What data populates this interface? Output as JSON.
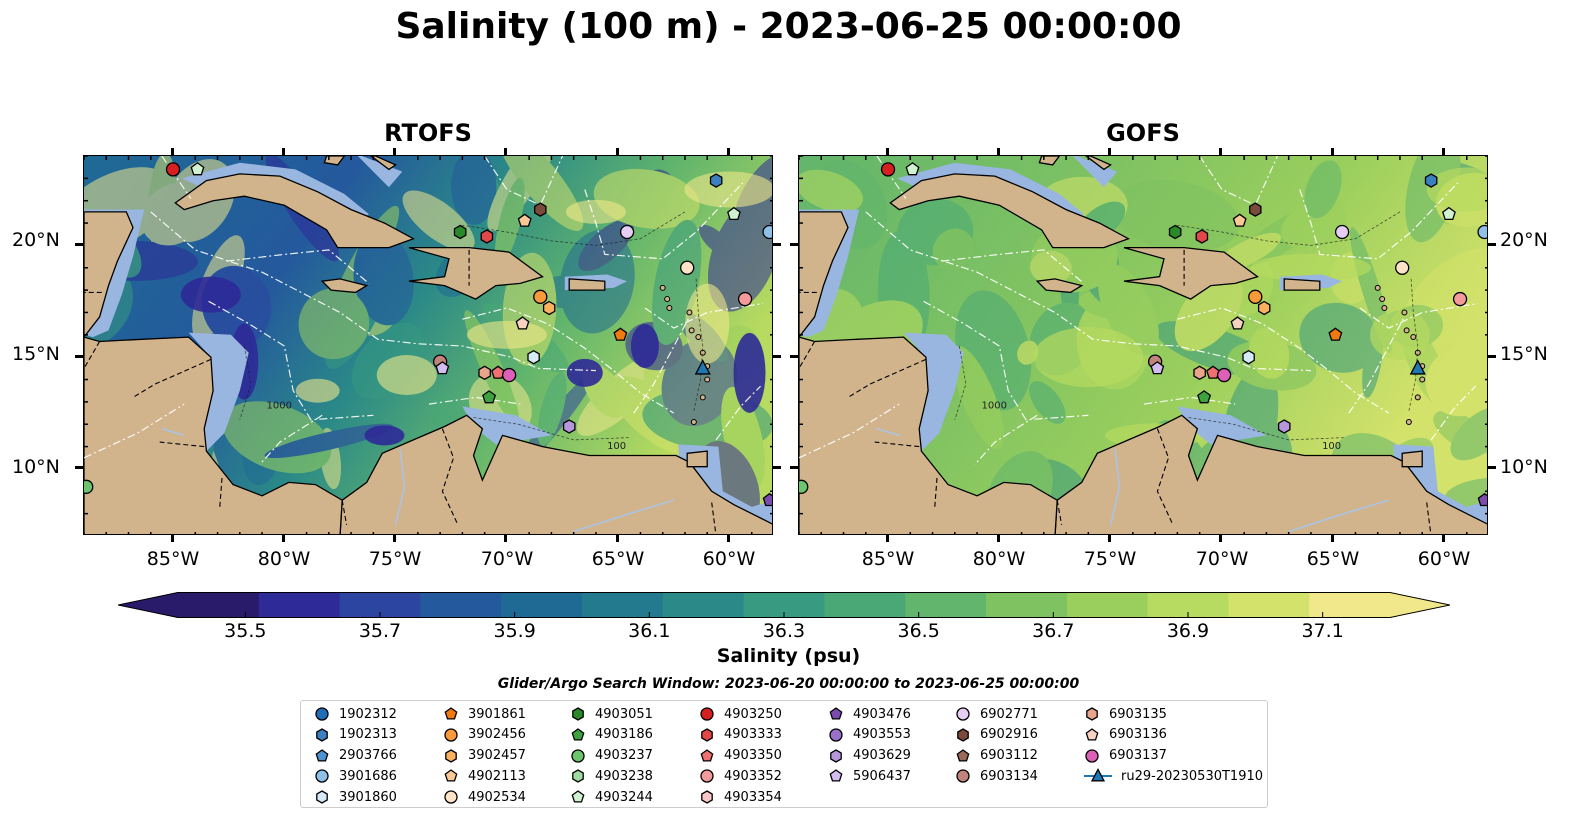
{
  "title": "Salinity (100 m) - 2023-06-25 00:00:00",
  "panels": [
    {
      "title": "RTOFS",
      "scheme": "rtofs"
    },
    {
      "title": "GOFS",
      "scheme": "gofs"
    }
  ],
  "map": {
    "lon_range": [
      -89,
      -58
    ],
    "lat_range": [
      7,
      24
    ],
    "lon_ticks": [
      "85°W",
      "80°W",
      "75°W",
      "70°W",
      "65°W",
      "60°W"
    ],
    "lat_ticks": [
      "20°N",
      "15°N",
      "10°N"
    ],
    "contour_labels": [
      "1000",
      "100"
    ],
    "land_color": "#d2b48c",
    "shelf_color": "#99b6e0"
  },
  "colorbar": {
    "title": "Salinity (psu)",
    "ticks": [
      "35.5",
      "35.7",
      "35.9",
      "36.1",
      "36.3",
      "36.5",
      "36.7",
      "36.9",
      "37.1"
    ],
    "range": [
      35.4,
      37.2
    ],
    "colors": [
      "#2a1a6a",
      "#2e2a97",
      "#2c45a0",
      "#24599d",
      "#1f6a94",
      "#23798d",
      "#2b8a87",
      "#389a80",
      "#4aa877",
      "#62b56c",
      "#7fc262",
      "#9bcf5d",
      "#b7da60",
      "#d3e26b",
      "#f0e88a"
    ]
  },
  "legend": {
    "title": "Glider/Argo Search Window: 2023-06-20 00:00:00 to 2023-06-25 00:00:00",
    "columns": [
      [
        {
          "label": "1902312",
          "marker": "circle",
          "color": "#1f6db5"
        },
        {
          "label": "1902313",
          "marker": "hexagon",
          "color": "#3a7fc0"
        },
        {
          "label": "2903766",
          "marker": "pentagon",
          "color": "#4e93d0"
        },
        {
          "label": "3901686",
          "marker": "circle",
          "color": "#8ec0e8"
        },
        {
          "label": "3901860",
          "marker": "hexagon",
          "color": "#d6eafa"
        }
      ],
      [
        {
          "label": "3901861",
          "marker": "pentagon",
          "color": "#f07a10"
        },
        {
          "label": "3902456",
          "marker": "circle",
          "color": "#f89a3a"
        },
        {
          "label": "3902457",
          "marker": "hexagon",
          "color": "#f9b060"
        },
        {
          "label": "4902113",
          "marker": "pentagon",
          "color": "#fbc995"
        },
        {
          "label": "4902534",
          "marker": "circle",
          "color": "#fde4c8"
        }
      ],
      [
        {
          "label": "4903051",
          "marker": "hexagon",
          "color": "#2a8a2a"
        },
        {
          "label": "4903186",
          "marker": "pentagon",
          "color": "#3ea33e"
        },
        {
          "label": "4903237",
          "marker": "circle",
          "color": "#6cc46c"
        },
        {
          "label": "4903238",
          "marker": "hexagon",
          "color": "#9fdc9f"
        },
        {
          "label": "4903244",
          "marker": "pentagon",
          "color": "#d0f2d0"
        }
      ],
      [
        {
          "label": "4903250",
          "marker": "circle",
          "color": "#d62020"
        },
        {
          "label": "4903333",
          "marker": "hexagon",
          "color": "#e24848"
        },
        {
          "label": "4903350",
          "marker": "pentagon",
          "color": "#ee7070"
        },
        {
          "label": "4903352",
          "marker": "circle",
          "color": "#f59a9a"
        },
        {
          "label": "4903354",
          "marker": "hexagon",
          "color": "#fbc6c6"
        }
      ],
      [
        {
          "label": "4903476",
          "marker": "pentagon",
          "color": "#7b4bb0"
        },
        {
          "label": "4903553",
          "marker": "circle",
          "color": "#9a70c8"
        },
        {
          "label": "4903629",
          "marker": "hexagon",
          "color": "#b796dc"
        },
        {
          "label": "5906437",
          "marker": "pentagon",
          "color": "#d3bcef"
        }
      ],
      [
        {
          "label": "6902771",
          "marker": "circle",
          "color": "#e6cdf3"
        },
        {
          "label": "6902916",
          "marker": "hexagon",
          "color": "#7a4a3a"
        },
        {
          "label": "6903112",
          "marker": "pentagon",
          "color": "#9a6a58"
        },
        {
          "label": "6903134",
          "marker": "circle",
          "color": "#c0847a"
        }
      ],
      [
        {
          "label": "6903135",
          "marker": "hexagon",
          "color": "#e8a58a"
        },
        {
          "label": "6903136",
          "marker": "pentagon",
          "color": "#f6d2c2"
        },
        {
          "label": "6903137",
          "marker": "circle",
          "color": "#dd5fb8"
        },
        {
          "label": "ru29-20230530T1910",
          "marker": "triangle-line",
          "color": "#1f77b4"
        }
      ]
    ]
  },
  "floats": [
    {
      "lon": -85,
      "lat": 23.4,
      "marker": "circle",
      "color": "#d62020"
    },
    {
      "lon": -83.9,
      "lat": 23.4,
      "marker": "pentagon",
      "color": "#d0f2d0"
    },
    {
      "lon": -60.6,
      "lat": 22.9,
      "marker": "hexagon",
      "color": "#3a7fc0"
    },
    {
      "lon": -59.8,
      "lat": 21.4,
      "marker": "pentagon",
      "color": "#d0f2d0"
    },
    {
      "lon": -58.2,
      "lat": 20.6,
      "marker": "circle",
      "color": "#8ec0e8"
    },
    {
      "lon": -68.5,
      "lat": 21.6,
      "marker": "hexagon",
      "color": "#7a4a3a"
    },
    {
      "lon": -69.2,
      "lat": 21.1,
      "marker": "pentagon",
      "color": "#fbc995"
    },
    {
      "lon": -72.1,
      "lat": 20.6,
      "marker": "hexagon",
      "color": "#2a8a2a"
    },
    {
      "lon": -70.9,
      "lat": 20.4,
      "marker": "hexagon",
      "color": "#e24848"
    },
    {
      "lon": -64.6,
      "lat": 20.6,
      "marker": "circle",
      "color": "#e6cdf3"
    },
    {
      "lon": -61.9,
      "lat": 19.0,
      "marker": "circle",
      "color": "#fde4c8"
    },
    {
      "lon": -59.3,
      "lat": 17.6,
      "marker": "circle",
      "color": "#f59a9a"
    },
    {
      "lon": -68.5,
      "lat": 17.7,
      "marker": "circle",
      "color": "#f89a3a"
    },
    {
      "lon": -68.1,
      "lat": 17.2,
      "marker": "hexagon",
      "color": "#f9b060"
    },
    {
      "lon": -69.3,
      "lat": 16.5,
      "marker": "pentagon",
      "color": "#f6d2c2"
    },
    {
      "lon": -64.9,
      "lat": 16.0,
      "marker": "pentagon",
      "color": "#f07a10"
    },
    {
      "lon": -68.8,
      "lat": 15.0,
      "marker": "hexagon",
      "color": "#d6eafa"
    },
    {
      "lon": -73.0,
      "lat": 14.8,
      "marker": "circle",
      "color": "#c0847a"
    },
    {
      "lon": -72.9,
      "lat": 14.5,
      "marker": "pentagon",
      "color": "#d3bcef"
    },
    {
      "lon": -71.0,
      "lat": 14.3,
      "marker": "hexagon",
      "color": "#e8a58a"
    },
    {
      "lon": -70.4,
      "lat": 14.3,
      "marker": "pentagon",
      "color": "#ee7070"
    },
    {
      "lon": -69.9,
      "lat": 14.2,
      "marker": "circle",
      "color": "#dd5fb8"
    },
    {
      "lon": -70.8,
      "lat": 13.2,
      "marker": "pentagon",
      "color": "#3ea33e"
    },
    {
      "lon": -67.2,
      "lat": 11.9,
      "marker": "hexagon",
      "color": "#b796dc"
    },
    {
      "lon": -61.2,
      "lat": 14.5,
      "marker": "triangle",
      "color": "#1f77b4"
    },
    {
      "lon": -58.2,
      "lat": 8.6,
      "marker": "pentagon",
      "color": "#7b4bb0"
    },
    {
      "lon": -88.9,
      "lat": 9.2,
      "marker": "circle",
      "color": "#6cc46c"
    }
  ]
}
